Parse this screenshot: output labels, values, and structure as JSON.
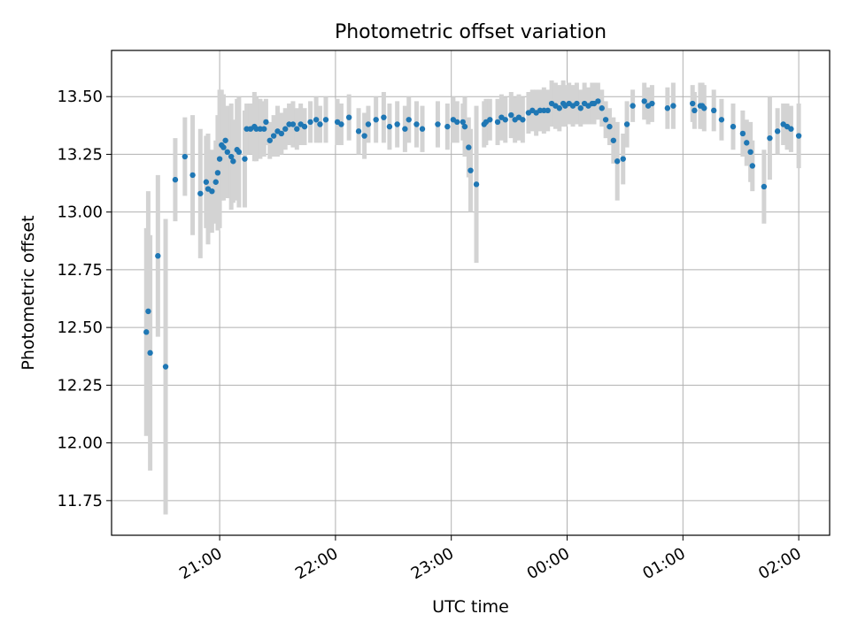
{
  "chart_data": {
    "type": "scatter",
    "title": "Photometric offset variation",
    "xlabel": "UTC time",
    "ylabel": "Photometric offset",
    "grid": true,
    "legend": "none",
    "xlim": [
      "20:04",
      "02:16"
    ],
    "ylim": [
      11.6,
      13.7
    ],
    "x_ticks": [
      "21:00",
      "22:00",
      "23:00",
      "00:00",
      "01:00",
      "02:00"
    ],
    "y_ticks": [
      "11.75",
      "12.00",
      "12.25",
      "12.50",
      "12.75",
      "13.00",
      "13.25",
      "13.50"
    ],
    "colors": {
      "point": "#1f77b4",
      "errorbar": "#d3d3d3",
      "grid": "#b0b0b0"
    },
    "series": [
      {
        "x": [
          "20:22",
          "20:23",
          "20:24",
          "20:28",
          "20:32",
          "20:37",
          "20:42",
          "20:46",
          "20:50",
          "20:53",
          "20:54",
          "20:56",
          "20:58",
          "20:59",
          "21:00",
          "21:01",
          "21:02",
          "21:03",
          "21:04",
          "21:06",
          "21:07",
          "21:09",
          "21:10",
          "21:13",
          "21:14",
          "21:16",
          "21:18",
          "21:19",
          "21:21",
          "21:23",
          "21:24",
          "21:26",
          "21:28",
          "21:30",
          "21:32",
          "21:34",
          "21:36",
          "21:38",
          "21:40",
          "21:42",
          "21:44",
          "21:47",
          "21:50",
          "21:52",
          "21:55",
          "22:01",
          "22:03",
          "22:07",
          "22:12",
          "22:15",
          "22:17",
          "22:21",
          "22:25",
          "22:28",
          "22:32",
          "22:36",
          "22:38",
          "22:42",
          "22:45",
          "22:53",
          "22:58",
          "23:01",
          "23:03",
          "23:06",
          "23:07",
          "23:09",
          "23:10",
          "23:13",
          "23:17",
          "23:18",
          "23:20",
          "23:24",
          "23:26",
          "23:28",
          "23:31",
          "23:33",
          "23:35",
          "23:37",
          "23:40",
          "23:42",
          "23:44",
          "23:46",
          "23:48",
          "23:50",
          "23:52",
          "23:54",
          "23:56",
          "23:58",
          "23:59",
          "00:01",
          "00:03",
          "00:05",
          "00:07",
          "00:09",
          "00:11",
          "00:13",
          "00:14",
          "00:16",
          "00:18",
          "00:20",
          "00:22",
          "00:24",
          "00:26",
          "00:29",
          "00:31",
          "00:34",
          "00:40",
          "00:42",
          "00:44",
          "00:52",
          "00:55",
          "01:05",
          "01:06",
          "01:09",
          "01:10",
          "01:11",
          "01:16",
          "01:20",
          "01:26",
          "01:31",
          "01:33",
          "01:35",
          "01:36",
          "01:42",
          "01:45",
          "01:49",
          "01:52",
          "01:54",
          "01:56",
          "02:00"
        ],
        "y": [
          12.48,
          12.57,
          12.39,
          12.81,
          12.33,
          13.14,
          13.24,
          13.16,
          13.08,
          13.13,
          13.1,
          13.09,
          13.13,
          13.17,
          13.23,
          13.29,
          13.28,
          13.31,
          13.26,
          13.24,
          13.22,
          13.27,
          13.26,
          13.23,
          13.36,
          13.36,
          13.37,
          13.36,
          13.36,
          13.36,
          13.39,
          13.31,
          13.33,
          13.35,
          13.34,
          13.36,
          13.38,
          13.38,
          13.36,
          13.38,
          13.37,
          13.39,
          13.4,
          13.38,
          13.4,
          13.39,
          13.38,
          13.41,
          13.35,
          13.33,
          13.38,
          13.4,
          13.41,
          13.37,
          13.38,
          13.36,
          13.4,
          13.38,
          13.36,
          13.38,
          13.37,
          13.4,
          13.39,
          13.39,
          13.37,
          13.28,
          13.18,
          13.12,
          13.38,
          13.39,
          13.4,
          13.39,
          13.41,
          13.4,
          13.42,
          13.4,
          13.41,
          13.4,
          13.43,
          13.44,
          13.43,
          13.44,
          13.44,
          13.44,
          13.47,
          13.46,
          13.45,
          13.47,
          13.46,
          13.47,
          13.46,
          13.47,
          13.45,
          13.47,
          13.46,
          13.47,
          13.47,
          13.48,
          13.45,
          13.4,
          13.37,
          13.31,
          13.22,
          13.23,
          13.38,
          13.46,
          13.48,
          13.46,
          13.47,
          13.45,
          13.46,
          13.47,
          13.44,
          13.46,
          13.46,
          13.45,
          13.44,
          13.4,
          13.37,
          13.34,
          13.3,
          13.26,
          13.2,
          13.11,
          13.32,
          13.35,
          13.38,
          13.37,
          13.36,
          13.33
        ],
        "err": [
          0.45,
          0.52,
          0.51,
          0.35,
          0.64,
          0.18,
          0.17,
          0.26,
          0.28,
          0.2,
          0.24,
          0.18,
          0.18,
          0.25,
          0.3,
          0.24,
          0.23,
          0.14,
          0.2,
          0.23,
          0.18,
          0.22,
          0.24,
          0.21,
          0.11,
          0.11,
          0.15,
          0.14,
          0.13,
          0.12,
          0.1,
          0.08,
          0.09,
          0.11,
          0.09,
          0.09,
          0.09,
          0.1,
          0.09,
          0.09,
          0.08,
          0.09,
          0.1,
          0.08,
          0.1,
          0.1,
          0.09,
          0.1,
          0.1,
          0.1,
          0.08,
          0.1,
          0.11,
          0.1,
          0.1,
          0.1,
          0.1,
          0.1,
          0.1,
          0.1,
          0.1,
          0.1,
          0.09,
          0.08,
          0.13,
          0.13,
          0.18,
          0.34,
          0.1,
          0.1,
          0.09,
          0.1,
          0.1,
          0.1,
          0.1,
          0.1,
          0.1,
          0.1,
          0.09,
          0.09,
          0.1,
          0.09,
          0.1,
          0.09,
          0.1,
          0.1,
          0.1,
          0.1,
          0.09,
          0.09,
          0.09,
          0.09,
          0.08,
          0.09,
          0.08,
          0.09,
          0.09,
          0.08,
          0.08,
          0.08,
          0.08,
          0.1,
          0.17,
          0.11,
          0.1,
          0.07,
          0.08,
          0.08,
          0.08,
          0.09,
          0.1,
          0.08,
          0.08,
          0.1,
          0.1,
          0.1,
          0.09,
          0.09,
          0.1,
          0.1,
          0.1,
          0.13,
          0.11,
          0.16,
          0.18,
          0.1,
          0.09,
          0.1,
          0.1,
          0.14
        ]
      }
    ]
  }
}
